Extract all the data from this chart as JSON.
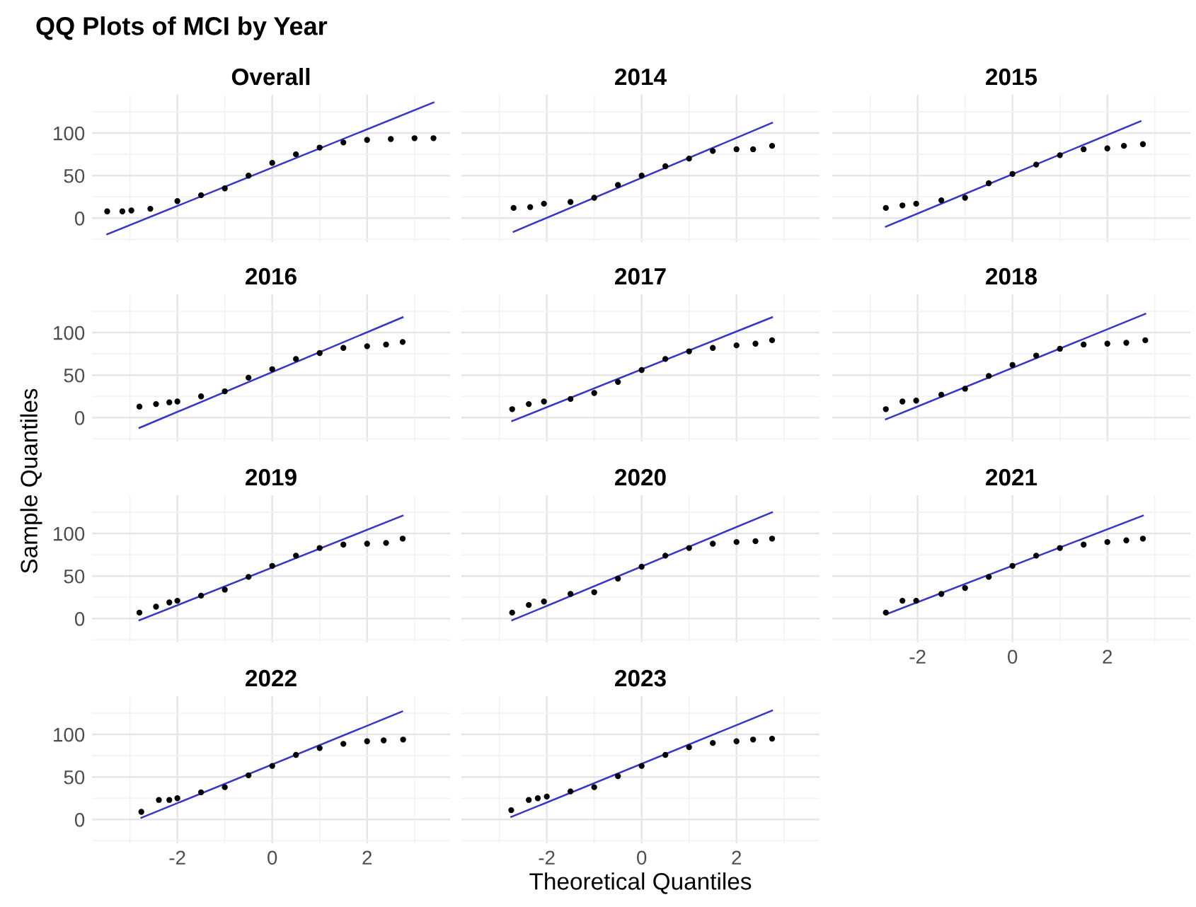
{
  "chart_data": [
    {
      "type": "scatter",
      "title": "QQ Plots of MCI by Year",
      "annotations": [
        "Sample Quantiles"
      ],
      "subtitle": "Overall",
      "xlim": [
        -3.8,
        3.75
      ],
      "ylim": [
        -28,
        145
      ],
      "xticks": [
        {
          "value": -3,
          "label": null
        },
        -2,
        {
          "value": -1,
          "label": null
        },
        0,
        {
          "value": 1,
          "label": null
        },
        2,
        {
          "value": 3,
          "label": null
        }
      ],
      "yticks": [
        {
          "value": -25,
          "label": null
        },
        0,
        {
          "value": 25,
          "label": null
        },
        50,
        {
          "value": 75,
          "label": null
        },
        100,
        {
          "value": 125,
          "label": null
        }
      ],
      "grid": true,
      "tick_labels": "y",
      "series": [
        {
          "color": "#000000",
          "marker": "circle",
          "x": [
            -3.48,
            -3.16,
            -2.97,
            -2.57,
            -2,
            -1.5,
            -1,
            -0.5,
            0,
            0.5,
            1,
            1.5,
            2,
            2.5,
            3,
            3.4
          ],
          "values": [
            8,
            8,
            9,
            11,
            20,
            27,
            35,
            50,
            65,
            75,
            83,
            89,
            92,
            93,
            94,
            94
          ]
        },
        {
          "type": "line",
          "color": "#3535c8",
          "x": [
            -3.48,
            3.4
          ],
          "values": [
            -19,
            136
          ]
        }
      ]
    },
    {
      "type": "scatter",
      "subtitle": "2014",
      "xlim": [
        -3.8,
        3.75
      ],
      "ylim": [
        -28,
        145
      ],
      "xticks": [
        {
          "value": -3,
          "label": null
        },
        -2,
        {
          "value": -1,
          "label": null
        },
        0,
        {
          "value": 1,
          "label": null
        },
        2,
        {
          "value": 3,
          "label": null
        }
      ],
      "yticks": [
        {
          "value": -25,
          "label": null
        },
        0,
        {
          "value": 25,
          "label": null
        },
        50,
        {
          "value": 75,
          "label": null
        },
        100,
        {
          "value": 125,
          "label": null
        }
      ],
      "grid": true,
      "tick_labels": false,
      "series": [
        {
          "color": "#000000",
          "marker": "circle",
          "x": [
            -2.7,
            -2.35,
            -2.06,
            -1.5,
            -1,
            -0.5,
            0,
            0.5,
            1,
            1.5,
            2,
            2.35,
            2.75
          ],
          "values": [
            12,
            13,
            17,
            19,
            24,
            39,
            50,
            61,
            70,
            79,
            81,
            81,
            85
          ]
        },
        {
          "type": "line",
          "color": "#3535c8",
          "x": [
            -2.7,
            2.75
          ],
          "values": [
            -16,
            112
          ]
        }
      ]
    },
    {
      "type": "scatter",
      "subtitle": "2015",
      "xlim": [
        -3.8,
        3.75
      ],
      "ylim": [
        -28,
        145
      ],
      "xticks": [
        {
          "value": -3,
          "label": null
        },
        -2,
        {
          "value": -1,
          "label": null
        },
        0,
        {
          "value": 1,
          "label": null
        },
        2,
        {
          "value": 3,
          "label": null
        }
      ],
      "yticks": [
        {
          "value": -25,
          "label": null
        },
        0,
        {
          "value": 25,
          "label": null
        },
        50,
        {
          "value": 75,
          "label": null
        },
        100,
        {
          "value": 125,
          "label": null
        }
      ],
      "grid": true,
      "tick_labels": false,
      "series": [
        {
          "color": "#000000",
          "marker": "circle",
          "x": [
            -2.67,
            -2.32,
            -2.03,
            -1.5,
            -1,
            -0.5,
            0,
            0.5,
            1,
            1.5,
            2,
            2.35,
            2.75
          ],
          "values": [
            12,
            15,
            17,
            21,
            24,
            41,
            52,
            63,
            74,
            81,
            82,
            85,
            87
          ]
        },
        {
          "type": "line",
          "color": "#3535c8",
          "x": [
            -2.67,
            2.7
          ],
          "values": [
            -10,
            114
          ]
        }
      ]
    },
    {
      "type": "scatter",
      "subtitle": "2016",
      "xlim": [
        -3.8,
        3.75
      ],
      "ylim": [
        -28,
        145
      ],
      "xticks": [
        {
          "value": -3,
          "label": null
        },
        -2,
        {
          "value": -1,
          "label": null
        },
        0,
        {
          "value": 1,
          "label": null
        },
        2,
        {
          "value": 3,
          "label": null
        }
      ],
      "yticks": [
        {
          "value": -25,
          "label": null
        },
        0,
        {
          "value": 25,
          "label": null
        },
        50,
        {
          "value": 75,
          "label": null
        },
        100,
        {
          "value": 125,
          "label": null
        }
      ],
      "grid": true,
      "tick_labels": "y",
      "series": [
        {
          "color": "#000000",
          "marker": "circle",
          "x": [
            -2.8,
            -2.45,
            -2.17,
            -2,
            -1.5,
            -1,
            -0.5,
            0,
            0.5,
            1,
            1.5,
            2,
            2.4,
            2.75
          ],
          "values": [
            13,
            16,
            18,
            19,
            25,
            31,
            47,
            57,
            69,
            76,
            82,
            84,
            86,
            89
          ]
        },
        {
          "type": "line",
          "color": "#3535c8",
          "x": [
            -2.8,
            2.75
          ],
          "values": [
            -12,
            118
          ]
        }
      ]
    },
    {
      "type": "scatter",
      "subtitle": "2017",
      "xlim": [
        -3.8,
        3.75
      ],
      "ylim": [
        -28,
        145
      ],
      "xticks": [
        {
          "value": -3,
          "label": null
        },
        -2,
        {
          "value": -1,
          "label": null
        },
        0,
        {
          "value": 1,
          "label": null
        },
        2,
        {
          "value": 3,
          "label": null
        }
      ],
      "yticks": [
        {
          "value": -25,
          "label": null
        },
        0,
        {
          "value": 25,
          "label": null
        },
        50,
        {
          "value": 75,
          "label": null
        },
        100,
        {
          "value": 125,
          "label": null
        }
      ],
      "grid": true,
      "tick_labels": false,
      "series": [
        {
          "color": "#000000",
          "marker": "circle",
          "x": [
            -2.73,
            -2.38,
            -2.06,
            -1.5,
            -1,
            -0.5,
            0,
            0.5,
            1,
            1.5,
            2,
            2.4,
            2.75
          ],
          "values": [
            10,
            16,
            19,
            22,
            29,
            42,
            56,
            69,
            78,
            82,
            85,
            87,
            91
          ]
        },
        {
          "type": "line",
          "color": "#3535c8",
          "x": [
            -2.73,
            2.75
          ],
          "values": [
            -4,
            118
          ]
        }
      ]
    },
    {
      "type": "scatter",
      "subtitle": "2018",
      "xlim": [
        -3.8,
        3.75
      ],
      "ylim": [
        -28,
        145
      ],
      "xticks": [
        {
          "value": -3,
          "label": null
        },
        -2,
        {
          "value": -1,
          "label": null
        },
        0,
        {
          "value": 1,
          "label": null
        },
        2,
        {
          "value": 3,
          "label": null
        }
      ],
      "yticks": [
        {
          "value": -25,
          "label": null
        },
        0,
        {
          "value": 25,
          "label": null
        },
        50,
        {
          "value": 75,
          "label": null
        },
        100,
        {
          "value": 125,
          "label": null
        }
      ],
      "grid": true,
      "tick_labels": false,
      "series": [
        {
          "color": "#000000",
          "marker": "circle",
          "x": [
            -2.67,
            -2.32,
            -2.03,
            -1.5,
            -1,
            -0.5,
            0,
            0.5,
            1,
            1.5,
            2,
            2.4,
            2.8
          ],
          "values": [
            10,
            19,
            20,
            27,
            34,
            49,
            62,
            73,
            81,
            86,
            87,
            88,
            91
          ]
        },
        {
          "type": "line",
          "color": "#3535c8",
          "x": [
            -2.67,
            2.8
          ],
          "values": [
            -2,
            122
          ]
        }
      ]
    },
    {
      "type": "scatter",
      "subtitle": "2019",
      "xlim": [
        -3.8,
        3.75
      ],
      "ylim": [
        -28,
        145
      ],
      "xticks": [
        {
          "value": -3,
          "label": null
        },
        -2,
        {
          "value": -1,
          "label": null
        },
        0,
        {
          "value": 1,
          "label": null
        },
        2,
        {
          "value": 3,
          "label": null
        }
      ],
      "yticks": [
        {
          "value": -25,
          "label": null
        },
        0,
        {
          "value": 25,
          "label": null
        },
        50,
        {
          "value": 75,
          "label": null
        },
        100,
        {
          "value": 125,
          "label": null
        }
      ],
      "grid": true,
      "tick_labels": "y",
      "series": [
        {
          "color": "#000000",
          "marker": "circle",
          "x": [
            -2.8,
            -2.45,
            -2.17,
            -2,
            -1.5,
            -1,
            -0.5,
            0,
            0.5,
            1,
            1.5,
            2,
            2.4,
            2.75
          ],
          "values": [
            7,
            14,
            19,
            21,
            27,
            34,
            49,
            62,
            74,
            83,
            87,
            88,
            89,
            94
          ]
        },
        {
          "type": "line",
          "color": "#3535c8",
          "x": [
            -2.8,
            2.75
          ],
          "values": [
            -2,
            121
          ]
        }
      ]
    },
    {
      "type": "scatter",
      "subtitle": "2020",
      "xlim": [
        -3.8,
        3.75
      ],
      "ylim": [
        -28,
        145
      ],
      "xticks": [
        {
          "value": -3,
          "label": null
        },
        -2,
        {
          "value": -1,
          "label": null
        },
        0,
        {
          "value": 1,
          "label": null
        },
        2,
        {
          "value": 3,
          "label": null
        }
      ],
      "yticks": [
        {
          "value": -25,
          "label": null
        },
        0,
        {
          "value": 25,
          "label": null
        },
        50,
        {
          "value": 75,
          "label": null
        },
        100,
        {
          "value": 125,
          "label": null
        }
      ],
      "grid": true,
      "tick_labels": false,
      "series": [
        {
          "color": "#000000",
          "marker": "circle",
          "x": [
            -2.73,
            -2.38,
            -2.06,
            -1.5,
            -1,
            -0.5,
            0,
            0.5,
            1,
            1.5,
            2,
            2.4,
            2.75
          ],
          "values": [
            7,
            16,
            20,
            29,
            31,
            47,
            61,
            74,
            83,
            88,
            90,
            91,
            94
          ]
        },
        {
          "type": "line",
          "color": "#3535c8",
          "x": [
            -2.73,
            2.75
          ],
          "values": [
            -2,
            125
          ]
        }
      ]
    },
    {
      "type": "scatter",
      "subtitle": "2021",
      "xlim": [
        -3.8,
        3.75
      ],
      "ylim": [
        -28,
        145
      ],
      "xticks": [
        {
          "value": -3,
          "label": null
        },
        -2,
        {
          "value": -1,
          "label": null
        },
        0,
        {
          "value": 1,
          "label": null
        },
        2,
        {
          "value": 3,
          "label": null
        }
      ],
      "yticks": [
        {
          "value": -25,
          "label": null
        },
        0,
        {
          "value": 25,
          "label": null
        },
        50,
        {
          "value": 75,
          "label": null
        },
        100,
        {
          "value": 125,
          "label": null
        }
      ],
      "grid": true,
      "tick_labels": "x",
      "series": [
        {
          "color": "#000000",
          "marker": "circle",
          "x": [
            -2.67,
            -2.32,
            -2.03,
            -1.5,
            -1,
            -0.5,
            0,
            0.5,
            1,
            1.5,
            2,
            2.4,
            2.75
          ],
          "values": [
            7,
            21,
            21,
            29,
            36,
            49,
            62,
            74,
            83,
            87,
            90,
            92,
            94
          ]
        },
        {
          "type": "line",
          "color": "#3535c8",
          "x": [
            -2.67,
            2.75
          ],
          "values": [
            5,
            121
          ]
        }
      ]
    },
    {
      "type": "scatter",
      "subtitle": "2022",
      "xlim": [
        -3.8,
        3.75
      ],
      "ylim": [
        -28,
        145
      ],
      "xticks": [
        {
          "value": -3,
          "label": null
        },
        -2,
        {
          "value": -1,
          "label": null
        },
        0,
        {
          "value": 1,
          "label": null
        },
        2,
        {
          "value": 3,
          "label": null
        }
      ],
      "yticks": [
        {
          "value": -25,
          "label": null
        },
        0,
        {
          "value": 25,
          "label": null
        },
        50,
        {
          "value": 75,
          "label": null
        },
        100,
        {
          "value": 125,
          "label": null
        }
      ],
      "grid": true,
      "series": [
        {
          "color": "#000000",
          "marker": "circle",
          "x": [
            -2.76,
            -2.39,
            -2.17,
            -2,
            -1.5,
            -1,
            -0.5,
            0,
            0.5,
            1,
            1.5,
            2,
            2.35,
            2.76
          ],
          "values": [
            9,
            23,
            23,
            25,
            32,
            38,
            52,
            63,
            76,
            84,
            89,
            92,
            93,
            94
          ]
        },
        {
          "type": "line",
          "color": "#3535c8",
          "x": [
            -2.76,
            2.74
          ],
          "values": [
            2,
            127
          ]
        }
      ]
    },
    {
      "type": "scatter",
      "subtitle": "2023",
      "xlabel": "Theoretical Quantiles",
      "xlim": [
        -3.8,
        3.75
      ],
      "ylim": [
        -28,
        145
      ],
      "xticks": [
        {
          "value": -3,
          "label": null
        },
        -2,
        {
          "value": -1,
          "label": null
        },
        0,
        {
          "value": 1,
          "label": null
        },
        2,
        {
          "value": 3,
          "label": null
        }
      ],
      "yticks": [
        {
          "value": -25,
          "label": null
        },
        0,
        {
          "value": 25,
          "label": null
        },
        50,
        {
          "value": 75,
          "label": null
        },
        100,
        {
          "value": 125,
          "label": null
        }
      ],
      "grid": true,
      "tick_labels": "x",
      "series": [
        {
          "color": "#000000",
          "marker": "circle",
          "x": [
            -2.75,
            -2.38,
            -2.19,
            -2,
            -1.5,
            -1,
            -0.5,
            0,
            0.5,
            1,
            1.5,
            2,
            2.35,
            2.75
          ],
          "values": [
            11,
            23,
            25,
            27,
            33,
            38,
            51,
            63,
            76,
            85,
            90,
            92,
            94,
            95
          ]
        },
        {
          "type": "line",
          "color": "#3535c8",
          "x": [
            -2.75,
            2.75
          ],
          "values": [
            3,
            128
          ]
        }
      ]
    }
  ]
}
